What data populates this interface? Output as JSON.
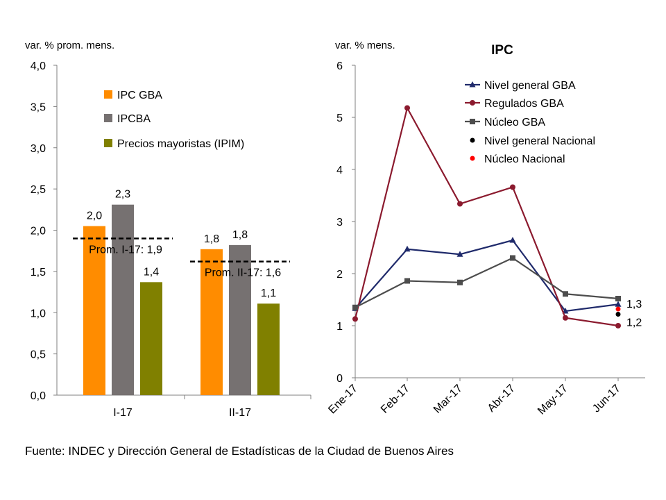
{
  "colors": {
    "orange": "#ff8c00",
    "gray": "#767171",
    "olive": "#808000",
    "navy": "#1f2a6b",
    "maroon": "#8b1a2e",
    "darkgray": "#4d4d4d",
    "black": "#000000",
    "red": "#ff0000"
  },
  "chart_data": [
    {
      "type": "bar",
      "title": "",
      "ylabel": "var. % prom. mens.",
      "xlabel": "",
      "ylim": [
        0,
        4
      ],
      "ytick_labels": [
        "0,0",
        "0,5",
        "1,0",
        "1,5",
        "2,0",
        "2,5",
        "3,0",
        "3,5",
        "4,0"
      ],
      "categories": [
        "I-17",
        "II-17"
      ],
      "series": [
        {
          "name": "IPC GBA",
          "color_key": "orange",
          "values": [
            2.05,
            1.77
          ],
          "labels": [
            "2,0",
            "1,8"
          ]
        },
        {
          "name": "IPCBA",
          "color_key": "gray",
          "values": [
            2.31,
            1.82
          ],
          "labels": [
            "2,3",
            "1,8"
          ]
        },
        {
          "name": "Precios mayoristas (IPIM)",
          "color_key": "olive",
          "values": [
            1.37,
            1.11
          ],
          "labels": [
            "1,4",
            "1,1"
          ]
        }
      ],
      "averages": [
        {
          "label": "Prom. I-17: 1,9",
          "value": 1.9,
          "category_index": 0
        },
        {
          "label": "Prom. II-17: 1,6",
          "value": 1.62,
          "category_index": 1
        }
      ],
      "legend_position": "top-center"
    },
    {
      "type": "line",
      "title": "IPC",
      "ylabel": "var. % mens.",
      "xlabel": "",
      "ylim": [
        0,
        6
      ],
      "ytick_labels": [
        "0",
        "1",
        "2",
        "3",
        "4",
        "5",
        "6"
      ],
      "categories": [
        "Ene-17",
        "Feb-17",
        "Mar-17",
        "Abr-17",
        "May-17",
        "Jun-17"
      ],
      "series": [
        {
          "name": "Nivel general GBA",
          "color_key": "navy",
          "marker": "triangle",
          "values": [
            1.33,
            2.47,
            2.37,
            2.64,
            1.28,
            1.41
          ]
        },
        {
          "name": "Regulados GBA",
          "color_key": "maroon",
          "marker": "circle",
          "values": [
            1.13,
            5.18,
            3.34,
            3.66,
            1.15,
            1.0
          ]
        },
        {
          "name": "Núcleo GBA",
          "color_key": "darkgray",
          "marker": "square",
          "values": [
            1.35,
            1.86,
            1.83,
            2.3,
            1.61,
            1.52
          ]
        },
        {
          "name": "Nivel general Nacional",
          "color_key": "black",
          "marker": "dot",
          "points": [
            {
              "x_index": 5,
              "y": 1.22,
              "label": "1,2"
            }
          ]
        },
        {
          "name": "Núcleo Nacional",
          "color_key": "red",
          "marker": "dot",
          "points": [
            {
              "x_index": 5,
              "y": 1.32,
              "label": "1,3"
            }
          ]
        }
      ],
      "legend_position": "top-right"
    }
  ],
  "footer": {
    "source": "Fuente: INDEC y Dirección General de Estadísticas de la Ciudad de Buenos Aires"
  }
}
